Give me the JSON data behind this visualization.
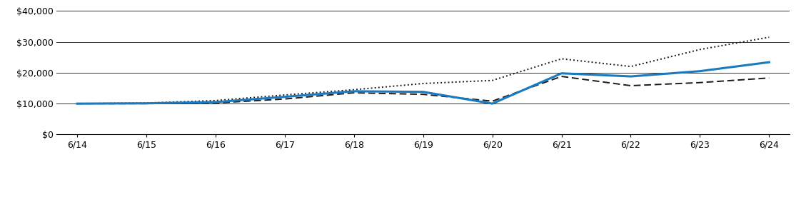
{
  "x_labels": [
    "6/14",
    "6/15",
    "6/16",
    "6/17",
    "6/18",
    "6/19",
    "6/20",
    "6/21",
    "6/22",
    "6/23",
    "6/24"
  ],
  "x_values": [
    0,
    1,
    2,
    3,
    4,
    5,
    6,
    7,
    8,
    9,
    10
  ],
  "fund_values": [
    10000,
    10100,
    10500,
    12200,
    14000,
    13800,
    10000,
    19800,
    18800,
    20500,
    23395
  ],
  "russell3000_values": [
    10000,
    10200,
    11000,
    12800,
    14500,
    16500,
    17500,
    24500,
    22000,
    27500,
    31475
  ],
  "russell2000_values": [
    10000,
    10000,
    10200,
    11500,
    13500,
    13000,
    10800,
    18800,
    15800,
    16800,
    18294
  ],
  "fund_color": "#1a7abf",
  "russell3000_color": "#1a1a1a",
  "russell2000_color": "#1a1a1a",
  "ylim": [
    0,
    40000
  ],
  "yticks": [
    0,
    10000,
    20000,
    30000,
    40000
  ],
  "ytick_labels": [
    "$0",
    "$10,000",
    "$20,000",
    "$30,000",
    "$40,000"
  ],
  "bg_color": "#ffffff",
  "grid_color": "#333333",
  "font_size": 9,
  "fund_linewidth": 2.2,
  "index_linewidth": 1.4
}
